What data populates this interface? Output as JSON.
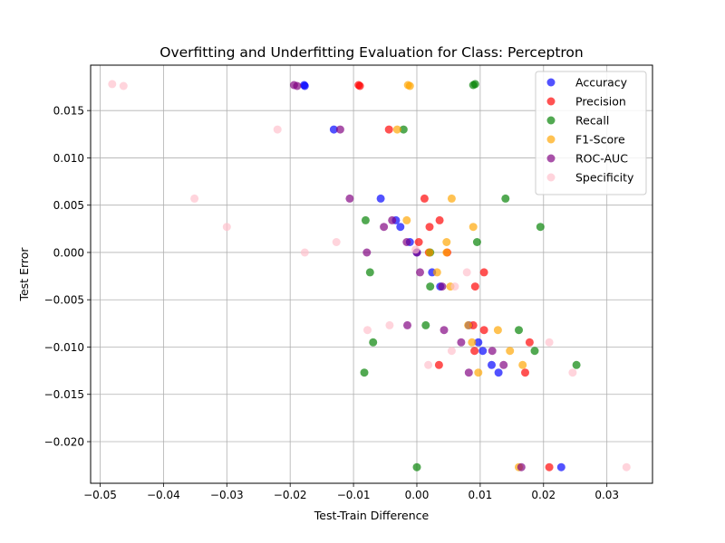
{
  "chart_data": {
    "type": "scatter",
    "title": "Overfitting and Underfitting Evaluation for Class: Perceptron",
    "xlabel": "Test-Train Difference",
    "ylabel": "Test Error",
    "xlim": [
      -0.0515,
      0.0372
    ],
    "ylim": [
      -0.0244,
      0.0198
    ],
    "xticks": [
      -0.05,
      -0.04,
      -0.03,
      -0.02,
      -0.01,
      0.0,
      0.01,
      0.02,
      0.03
    ],
    "xtick_labels": [
      "−0.05",
      "−0.04",
      "−0.03",
      "−0.02",
      "−0.01",
      "0.00",
      "0.01",
      "0.02",
      "0.03"
    ],
    "yticks": [
      -0.02,
      -0.015,
      -0.01,
      -0.005,
      0.0,
      0.005,
      0.01,
      0.015
    ],
    "ytick_labels": [
      "−0.020",
      "−0.015",
      "−0.010",
      "−0.005",
      "0.000",
      "0.005",
      "0.010",
      "0.015"
    ],
    "grid": true,
    "legend_position": "top-right",
    "series": [
      {
        "name": "Accuracy",
        "color": "#0000ff",
        "points": [
          [
            -0.0178,
            0.0177
          ],
          [
            -0.0177,
            0.0176
          ],
          [
            -0.0131,
            0.013
          ],
          [
            -0.0057,
            0.0057
          ],
          [
            -0.0033,
            0.0034
          ],
          [
            -0.0026,
            0.0027
          ],
          [
            -0.0011,
            0.0011
          ],
          [
            0.0,
            0.0
          ],
          [
            0.0024,
            -0.0021
          ],
          [
            0.0037,
            -0.0036
          ],
          [
            0.0082,
            -0.0077
          ],
          [
            0.0097,
            -0.0095
          ],
          [
            0.0104,
            -0.0104
          ],
          [
            0.0118,
            -0.0119
          ],
          [
            0.0129,
            -0.0127
          ],
          [
            0.0228,
            -0.0227
          ]
        ]
      },
      {
        "name": "Precision",
        "color": "#ff0000",
        "points": [
          [
            -0.0092,
            0.0177
          ],
          [
            -0.009,
            0.0176
          ],
          [
            -0.0044,
            0.013
          ],
          [
            0.0012,
            0.0057
          ],
          [
            0.0036,
            0.0034
          ],
          [
            0.002,
            0.0027
          ],
          [
            0.0003,
            0.0011
          ],
          [
            0.0019,
            0.0
          ],
          [
            0.0048,
            0.0
          ],
          [
            0.0106,
            -0.0021
          ],
          [
            0.0092,
            -0.0036
          ],
          [
            0.0089,
            -0.0077
          ],
          [
            0.0106,
            -0.0082
          ],
          [
            0.0178,
            -0.0095
          ],
          [
            0.0091,
            -0.0104
          ],
          [
            0.0035,
            -0.0119
          ],
          [
            0.0171,
            -0.0127
          ],
          [
            0.0209,
            -0.0227
          ]
        ]
      },
      {
        "name": "Recall",
        "color": "#008000",
        "points": [
          [
            0.0089,
            0.0177
          ],
          [
            0.0092,
            0.0178
          ],
          [
            -0.0021,
            0.013
          ],
          [
            0.014,
            0.0057
          ],
          [
            -0.0081,
            0.0034
          ],
          [
            0.0195,
            0.0027
          ],
          [
            0.0095,
            0.0011
          ],
          [
            0.0021,
            0.0
          ],
          [
            -0.0074,
            -0.0021
          ],
          [
            0.0021,
            -0.0036
          ],
          [
            0.0014,
            -0.0077
          ],
          [
            0.0161,
            -0.0082
          ],
          [
            -0.0069,
            -0.0095
          ],
          [
            0.0186,
            -0.0104
          ],
          [
            0.0252,
            -0.0119
          ],
          [
            -0.0083,
            -0.0127
          ],
          [
            0.0,
            -0.0227
          ]
        ]
      },
      {
        "name": "F1-Score",
        "color": "#ffa500",
        "points": [
          [
            -0.0014,
            0.0177
          ],
          [
            -0.0011,
            0.0176
          ],
          [
            -0.0031,
            0.013
          ],
          [
            0.0055,
            0.0057
          ],
          [
            -0.0016,
            0.0034
          ],
          [
            0.0089,
            0.0027
          ],
          [
            0.0047,
            0.0011
          ],
          [
            0.002,
            0.0
          ],
          [
            0.0047,
            0.0
          ],
          [
            0.0032,
            -0.0021
          ],
          [
            0.0053,
            -0.0036
          ],
          [
            0.0081,
            -0.0077
          ],
          [
            0.0128,
            -0.0082
          ],
          [
            0.0087,
            -0.0095
          ],
          [
            0.0147,
            -0.0104
          ],
          [
            0.0167,
            -0.0119
          ],
          [
            0.0097,
            -0.0127
          ],
          [
            0.0161,
            -0.0227
          ]
        ]
      },
      {
        "name": "ROC-AUC",
        "color": "#800080",
        "points": [
          [
            -0.0194,
            0.0177
          ],
          [
            -0.0189,
            0.0176
          ],
          [
            -0.0121,
            0.013
          ],
          [
            -0.0106,
            0.0057
          ],
          [
            -0.0039,
            0.0034
          ],
          [
            -0.0052,
            0.0027
          ],
          [
            -0.0016,
            0.0011
          ],
          [
            0.0,
            0.0
          ],
          [
            -0.0079,
            0.0
          ],
          [
            0.0005,
            -0.0021
          ],
          [
            0.004,
            -0.0036
          ],
          [
            -0.0015,
            -0.0077
          ],
          [
            0.0043,
            -0.0082
          ],
          [
            0.007,
            -0.0095
          ],
          [
            0.0119,
            -0.0104
          ],
          [
            0.0137,
            -0.0119
          ],
          [
            0.0082,
            -0.0127
          ],
          [
            0.0165,
            -0.0227
          ]
        ]
      },
      {
        "name": "Specificity",
        "color": "#ffc0cb",
        "points": [
          [
            -0.0481,
            0.0178
          ],
          [
            -0.0463,
            0.0176
          ],
          [
            -0.022,
            0.013
          ],
          [
            -0.0351,
            0.0057
          ],
          [
            -0.03,
            0.0027
          ],
          [
            -0.0127,
            0.0011
          ],
          [
            -0.0177,
            0.0
          ],
          [
            -0.0002,
            0.0003
          ],
          [
            0.0079,
            -0.0021
          ],
          [
            0.006,
            -0.0036
          ],
          [
            -0.0043,
            -0.0077
          ],
          [
            -0.0078,
            -0.0082
          ],
          [
            0.0209,
            -0.0095
          ],
          [
            0.0055,
            -0.0104
          ],
          [
            0.0018,
            -0.0119
          ],
          [
            0.0246,
            -0.0127
          ],
          [
            0.0331,
            -0.0227
          ]
        ]
      }
    ]
  }
}
